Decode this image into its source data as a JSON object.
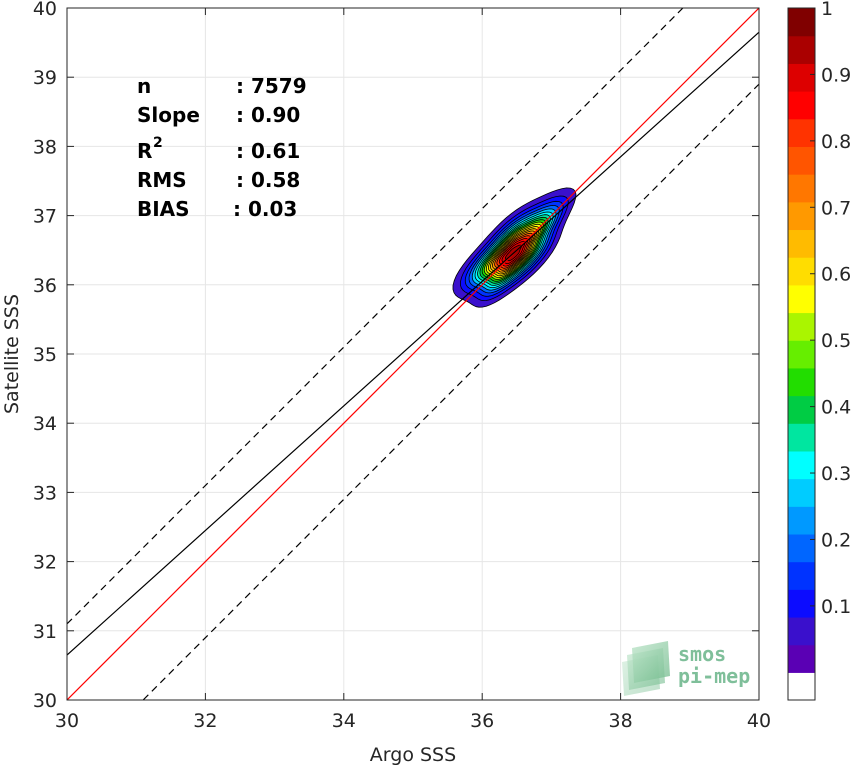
{
  "chart_data": {
    "type": "heatmap",
    "subtype": "density-contour-scatter",
    "xlabel": "Argo SSS",
    "ylabel": "Satellite SSS",
    "xlim": [
      30,
      40
    ],
    "ylim": [
      30,
      40
    ],
    "xticks": [
      "30",
      "32",
      "34",
      "36",
      "38",
      "40"
    ],
    "yticks": [
      "30",
      "31",
      "32",
      "33",
      "34",
      "35",
      "36",
      "37",
      "38",
      "39",
      "40"
    ],
    "grid": true,
    "stats": [
      {
        "name": "n",
        "value": ": 7579"
      },
      {
        "name": "Slope",
        "value": ": 0.90"
      },
      {
        "name": "R",
        "sup": "2",
        "value": ": 0.61"
      },
      {
        "name": "RMS",
        "value": ": 0.58"
      },
      {
        "name": "BIAS",
        "value": ": 0.03"
      }
    ],
    "reference_lines": {
      "identity": {
        "slope": 1.0,
        "intercept": 0.0,
        "color": "#ff0000"
      },
      "fit": {
        "slope": 0.9,
        "intercept": 3.65,
        "color": "#000000"
      },
      "envelope": {
        "offset": 1.1,
        "style": "dashed",
        "color": "#000000"
      }
    },
    "density_center": {
      "x": 36.45,
      "y": 36.45
    },
    "density_levels": [
      0.05,
      0.1,
      0.15,
      0.2,
      0.25,
      0.3,
      0.35,
      0.4,
      0.45,
      0.5,
      0.55,
      0.6,
      0.65,
      0.7,
      0.75,
      0.8,
      0.85,
      0.9,
      0.95
    ],
    "colorbar": {
      "min": 0,
      "max": 1,
      "ticks": [
        "0.1",
        "0.2",
        "0.3",
        "0.4",
        "0.5",
        "0.6",
        "0.7",
        "0.8",
        "0.9",
        "1"
      ],
      "colors": [
        "#ffffff",
        "#5a00b4",
        "#3a10cc",
        "#0c0cff",
        "#0033ff",
        "#0066ff",
        "#0099ff",
        "#00ccff",
        "#00ffff",
        "#00e6a0",
        "#00cc44",
        "#22dd00",
        "#66ee00",
        "#aaf500",
        "#ffff00",
        "#ffdd00",
        "#ffbb00",
        "#ff9900",
        "#ff7700",
        "#ff5500",
        "#ff3300",
        "#ff0000",
        "#dd0000",
        "#aa0000",
        "#800000"
      ]
    }
  },
  "logo": {
    "line1": "smos",
    "line2": "pi-mep"
  }
}
